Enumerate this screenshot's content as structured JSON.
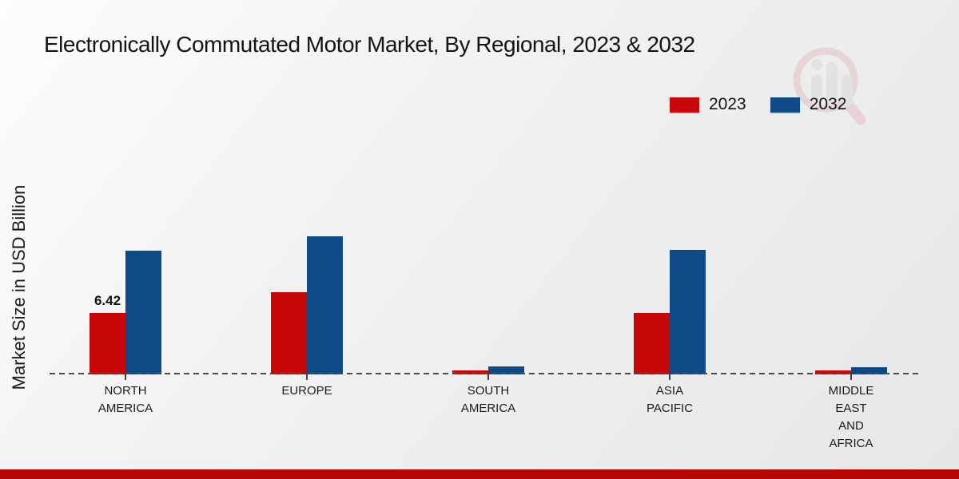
{
  "page": {
    "title": "Electronically Commutated Motor Market, By Regional, 2023 & 2032",
    "y_axis_label": "Market Size in USD Billion"
  },
  "legend": {
    "items": [
      {
        "label": "2023",
        "color": "#c80808"
      },
      {
        "label": "2032",
        "color": "#0e4a86"
      }
    ]
  },
  "colors": {
    "series_2023": "#c80808",
    "series_2032": "#0e4a86",
    "baseline_dash": "#4a4a4a",
    "footer_bar": "#b50707",
    "text": "#141414",
    "watermark_pink": "#e3b7ba",
    "watermark_gray": "#d6d6d6"
  },
  "chart_data": {
    "type": "bar",
    "title": "Electronically Commutated Motor Market, By Regional, 2023 & 2032",
    "xlabel": "",
    "ylabel": "Market Size in USD Billion",
    "categories": [
      "NORTH\nAMERICA",
      "EUROPE",
      "SOUTH\nAMERICA",
      "ASIA\nPACIFIC",
      "MIDDLE\nEAST\nAND\nAFRICA"
    ],
    "series": [
      {
        "name": "2023",
        "color": "#c80808",
        "values": [
          6.42,
          8.6,
          0.45,
          6.4,
          0.4
        ],
        "labels": [
          "6.42",
          "",
          "",
          "",
          ""
        ]
      },
      {
        "name": "2032",
        "color": "#0e4a86",
        "values": [
          12.9,
          14.4,
          0.85,
          13.0,
          0.75
        ],
        "labels": [
          "",
          "",
          "",
          "",
          ""
        ]
      }
    ],
    "ylim": [
      0,
      16
    ],
    "grid": false,
    "axis_ticks_visible": false,
    "legend_position": "top-right",
    "baseline_style": "dashed"
  }
}
